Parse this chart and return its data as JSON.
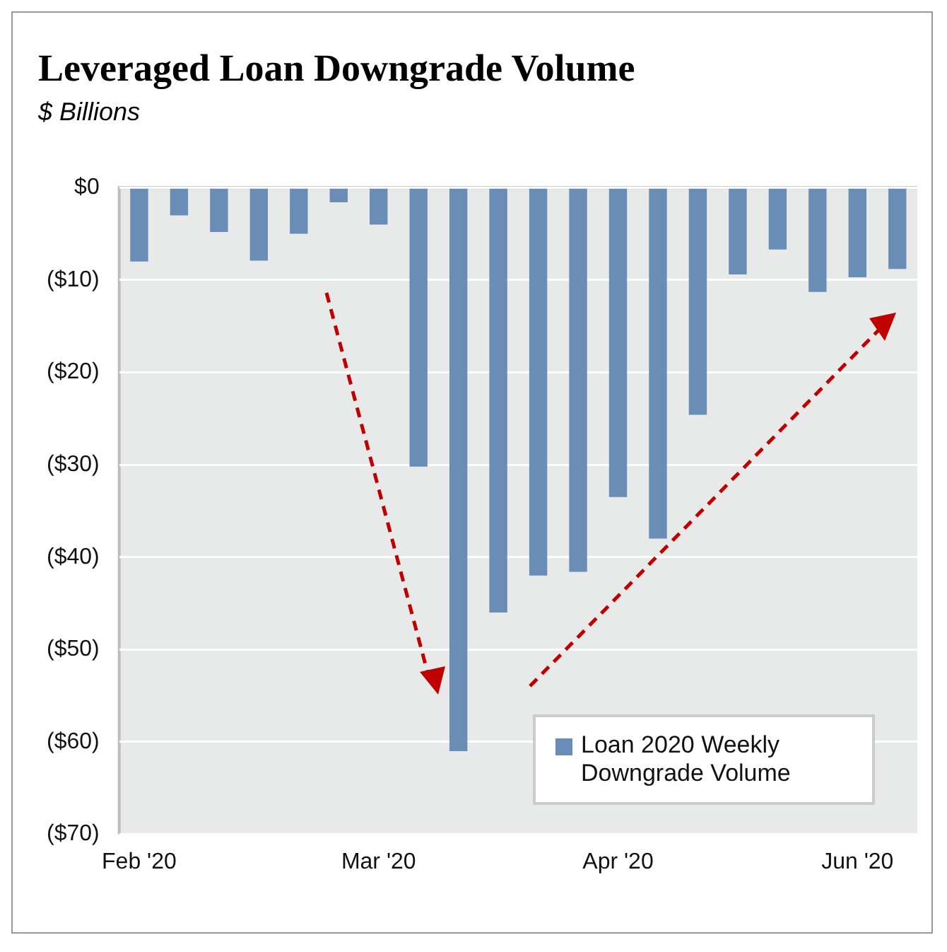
{
  "chart_data": {
    "type": "bar",
    "title": "Leveraged Loan Downgrade Volume",
    "subtitle": "$ Billions",
    "categories": [
      "Feb '20",
      null,
      null,
      null,
      null,
      null,
      "Mar '20",
      null,
      null,
      null,
      null,
      null,
      "Apr '20",
      null,
      null,
      null,
      null,
      null,
      "Jun '20",
      null
    ],
    "series": [
      {
        "name": "Loan 2020 Weekly Downgrade Volume",
        "color": "#6a8db5",
        "values": [
          -8,
          -3,
          -4.8,
          -7.9,
          -5,
          -1.6,
          -4,
          -30.2,
          -61,
          -46,
          -42,
          -41.6,
          -33.5,
          -38,
          -24.6,
          -9.4,
          -6.7,
          -11.3,
          -9.7,
          -8.8
        ]
      }
    ],
    "ylim": [
      -70,
      0
    ],
    "yticks": [
      {
        "value": 0,
        "label": "$0"
      },
      {
        "value": -10,
        "label": "($10)"
      },
      {
        "value": -20,
        "label": "($20)"
      },
      {
        "value": -30,
        "label": "($30)"
      },
      {
        "value": -40,
        "label": "($40)"
      },
      {
        "value": -50,
        "label": "($50)"
      },
      {
        "value": -60,
        "label": "($60)"
      },
      {
        "value": -70,
        "label": "($70)"
      }
    ],
    "grid": "y",
    "legend": "bottom right"
  }
}
